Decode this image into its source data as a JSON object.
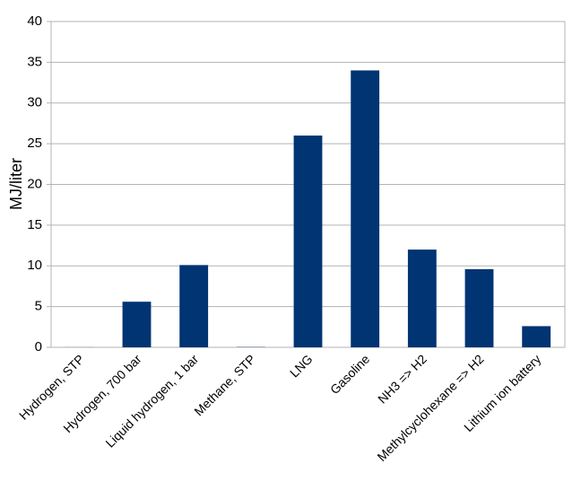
{
  "chart_data": {
    "type": "bar",
    "ylabel": "MJ/liter",
    "categories": [
      "Hydrogen, STP",
      "Hydrogen, 700 bar",
      "Liquid hydrogen, 1 bar",
      "Methane, STP",
      "LNG",
      "Gasoline",
      "NH3 => H2",
      "Methylcyclohexane => H2",
      "Lithium ion battery"
    ],
    "values": [
      0.01,
      5.6,
      10.1,
      0.036,
      26,
      34,
      12,
      9.6,
      2.6
    ],
    "color": "#003473",
    "ylim": [
      0,
      40
    ],
    "yticks": [
      0,
      5,
      10,
      15,
      20,
      25,
      30,
      35,
      40
    ],
    "grid": true
  }
}
